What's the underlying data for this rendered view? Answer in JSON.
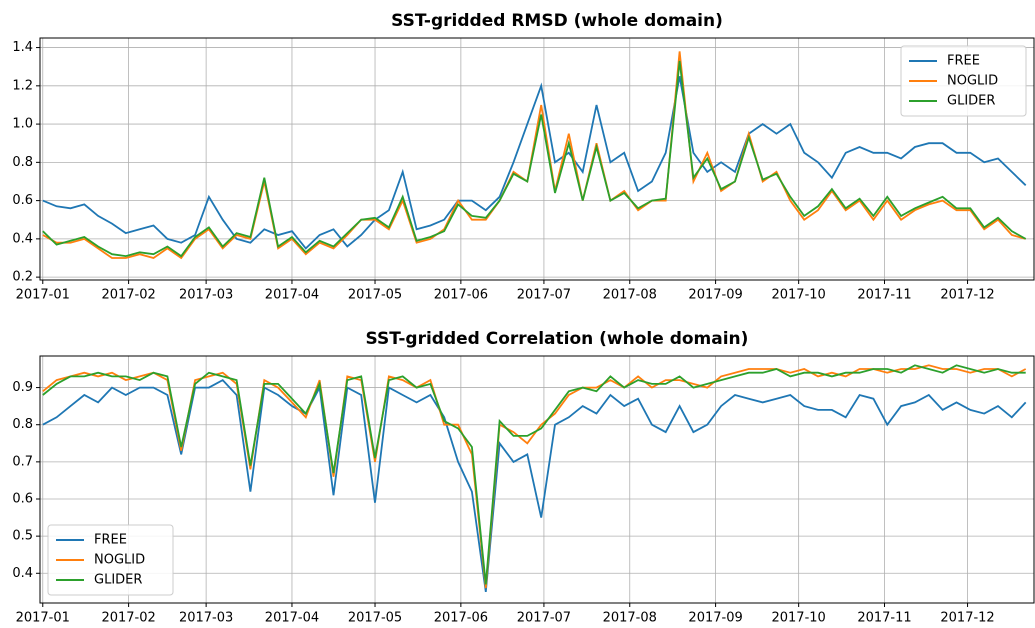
{
  "chart_data": [
    {
      "type": "line",
      "title": "SST-gridded RMSD (whole domain)",
      "grid": true,
      "legend": "upper right",
      "xlim": [
        -1,
        358
      ],
      "ylim": [
        0.185,
        1.45
      ],
      "xticks": [
        {
          "value": 0,
          "label": "2017-01"
        },
        {
          "value": 31,
          "label": "2017-02"
        },
        {
          "value": 59,
          "label": "2017-03"
        },
        {
          "value": 90,
          "label": "2017-04"
        },
        {
          "value": 120,
          "label": "2017-05"
        },
        {
          "value": 151,
          "label": "2017-06"
        },
        {
          "value": 181,
          "label": "2017-07"
        },
        {
          "value": 212,
          "label": "2017-08"
        },
        {
          "value": 243,
          "label": "2017-09"
        },
        {
          "value": 273,
          "label": "2017-10"
        },
        {
          "value": 304,
          "label": "2017-11"
        },
        {
          "value": 334,
          "label": "2017-12"
        }
      ],
      "yticks": [
        0.2,
        0.4,
        0.6,
        0.8,
        {
          "value": 1,
          "label": "1.0"
        },
        1.2,
        1.4
      ],
      "x": [
        0,
        5,
        10,
        15,
        20,
        25,
        30,
        35,
        40,
        45,
        50,
        55,
        60,
        65,
        70,
        75,
        80,
        85,
        90,
        95,
        100,
        105,
        110,
        115,
        120,
        125,
        130,
        135,
        140,
        145,
        150,
        155,
        160,
        165,
        170,
        175,
        180,
        185,
        190,
        195,
        200,
        205,
        210,
        215,
        220,
        225,
        230,
        235,
        240,
        245,
        250,
        255,
        260,
        265,
        270,
        275,
        280,
        285,
        290,
        295,
        300,
        305,
        310,
        315,
        320,
        325,
        330,
        335,
        340,
        345,
        350,
        355
      ],
      "series": [
        {
          "name": "FREE",
          "color": "#1f77b4",
          "values": [
            0.6,
            0.57,
            0.56,
            0.58,
            0.52,
            0.48,
            0.43,
            0.45,
            0.47,
            0.4,
            0.38,
            0.42,
            0.62,
            0.5,
            0.4,
            0.38,
            0.45,
            0.42,
            0.44,
            0.35,
            0.42,
            0.45,
            0.36,
            0.42,
            0.5,
            0.55,
            0.75,
            0.45,
            0.47,
            0.5,
            0.6,
            0.6,
            0.55,
            0.62,
            0.8,
            1.0,
            1.2,
            0.8,
            0.85,
            0.75,
            1.1,
            0.8,
            0.85,
            0.65,
            0.7,
            0.85,
            1.25,
            0.85,
            0.75,
            0.8,
            0.75,
            0.95,
            1.0,
            0.95,
            1.0,
            0.85,
            0.8,
            0.72,
            0.85,
            0.88,
            0.85,
            0.85,
            0.82,
            0.88,
            0.9,
            0.9,
            0.85,
            0.85,
            0.8,
            0.82,
            0.75,
            0.68
          ]
        },
        {
          "name": "NOGLID",
          "color": "#ff7f0e",
          "values": [
            0.42,
            0.38,
            0.38,
            0.4,
            0.35,
            0.3,
            0.3,
            0.32,
            0.3,
            0.35,
            0.3,
            0.4,
            0.45,
            0.35,
            0.42,
            0.4,
            0.7,
            0.35,
            0.4,
            0.32,
            0.38,
            0.35,
            0.42,
            0.5,
            0.5,
            0.45,
            0.6,
            0.38,
            0.4,
            0.45,
            0.6,
            0.5,
            0.5,
            0.6,
            0.75,
            0.7,
            1.1,
            0.65,
            0.95,
            0.6,
            0.9,
            0.6,
            0.65,
            0.55,
            0.6,
            0.6,
            1.38,
            0.7,
            0.85,
            0.65,
            0.7,
            0.95,
            0.7,
            0.75,
            0.6,
            0.5,
            0.55,
            0.65,
            0.55,
            0.6,
            0.5,
            0.6,
            0.5,
            0.55,
            0.58,
            0.6,
            0.55,
            0.55,
            0.45,
            0.5,
            0.42,
            0.4
          ]
        },
        {
          "name": "GLIDER",
          "color": "#2ca02c",
          "values": [
            0.44,
            0.37,
            0.39,
            0.41,
            0.36,
            0.32,
            0.31,
            0.33,
            0.32,
            0.36,
            0.31,
            0.41,
            0.46,
            0.36,
            0.43,
            0.41,
            0.72,
            0.36,
            0.41,
            0.33,
            0.39,
            0.36,
            0.43,
            0.5,
            0.51,
            0.46,
            0.62,
            0.39,
            0.41,
            0.44,
            0.58,
            0.52,
            0.51,
            0.6,
            0.74,
            0.7,
            1.05,
            0.64,
            0.9,
            0.6,
            0.88,
            0.6,
            0.64,
            0.56,
            0.6,
            0.61,
            1.33,
            0.72,
            0.82,
            0.66,
            0.7,
            0.93,
            0.71,
            0.74,
            0.62,
            0.52,
            0.57,
            0.66,
            0.56,
            0.61,
            0.52,
            0.62,
            0.52,
            0.56,
            0.59,
            0.62,
            0.56,
            0.56,
            0.46,
            0.51,
            0.44,
            0.4
          ]
        }
      ]
    },
    {
      "type": "line",
      "title": "SST-gridded Correlation (whole domain)",
      "grid": true,
      "legend": "lower left",
      "xlim": [
        -1,
        358
      ],
      "ylim": [
        0.32,
        0.985
      ],
      "xticks": [
        {
          "value": 0,
          "label": "2017-01"
        },
        {
          "value": 31,
          "label": "2017-02"
        },
        {
          "value": 59,
          "label": "2017-03"
        },
        {
          "value": 90,
          "label": "2017-04"
        },
        {
          "value": 120,
          "label": "2017-05"
        },
        {
          "value": 151,
          "label": "2017-06"
        },
        {
          "value": 181,
          "label": "2017-07"
        },
        {
          "value": 212,
          "label": "2017-08"
        },
        {
          "value": 243,
          "label": "2017-09"
        },
        {
          "value": 273,
          "label": "2017-10"
        },
        {
          "value": 304,
          "label": "2017-11"
        },
        {
          "value": 334,
          "label": "2017-12"
        }
      ],
      "yticks": [
        0.4,
        0.5,
        0.6,
        0.7,
        0.8,
        0.9
      ],
      "x": [
        0,
        5,
        10,
        15,
        20,
        25,
        30,
        35,
        40,
        45,
        50,
        55,
        60,
        65,
        70,
        75,
        80,
        85,
        90,
        95,
        100,
        105,
        110,
        115,
        120,
        125,
        130,
        135,
        140,
        145,
        150,
        155,
        160,
        165,
        170,
        175,
        180,
        185,
        190,
        195,
        200,
        205,
        210,
        215,
        220,
        225,
        230,
        235,
        240,
        245,
        250,
        255,
        260,
        265,
        270,
        275,
        280,
        285,
        290,
        295,
        300,
        305,
        310,
        315,
        320,
        325,
        330,
        335,
        340,
        345,
        350,
        355
      ],
      "series": [
        {
          "name": "FREE",
          "color": "#1f77b4",
          "values": [
            0.8,
            0.82,
            0.85,
            0.88,
            0.86,
            0.9,
            0.88,
            0.9,
            0.9,
            0.88,
            0.72,
            0.9,
            0.9,
            0.92,
            0.88,
            0.62,
            0.9,
            0.88,
            0.85,
            0.83,
            0.9,
            0.61,
            0.9,
            0.88,
            0.59,
            0.9,
            0.88,
            0.86,
            0.88,
            0.82,
            0.7,
            0.62,
            0.35,
            0.75,
            0.7,
            0.72,
            0.55,
            0.8,
            0.82,
            0.85,
            0.83,
            0.88,
            0.85,
            0.87,
            0.8,
            0.78,
            0.85,
            0.78,
            0.8,
            0.85,
            0.88,
            0.87,
            0.86,
            0.87,
            0.88,
            0.85,
            0.84,
            0.84,
            0.82,
            0.88,
            0.87,
            0.8,
            0.85,
            0.86,
            0.88,
            0.84,
            0.86,
            0.84,
            0.83,
            0.85,
            0.82,
            0.86
          ]
        },
        {
          "name": "NOGLID",
          "color": "#ff7f0e",
          "values": [
            0.89,
            0.92,
            0.93,
            0.94,
            0.93,
            0.94,
            0.92,
            0.93,
            0.94,
            0.92,
            0.73,
            0.92,
            0.93,
            0.94,
            0.91,
            0.68,
            0.92,
            0.9,
            0.86,
            0.82,
            0.92,
            0.66,
            0.93,
            0.92,
            0.7,
            0.93,
            0.92,
            0.9,
            0.92,
            0.8,
            0.8,
            0.72,
            0.36,
            0.8,
            0.78,
            0.75,
            0.8,
            0.83,
            0.88,
            0.9,
            0.9,
            0.92,
            0.9,
            0.93,
            0.9,
            0.92,
            0.92,
            0.91,
            0.9,
            0.93,
            0.94,
            0.95,
            0.95,
            0.95,
            0.94,
            0.95,
            0.93,
            0.94,
            0.93,
            0.95,
            0.95,
            0.94,
            0.95,
            0.95,
            0.96,
            0.95,
            0.95,
            0.94,
            0.95,
            0.95,
            0.93,
            0.95
          ]
        },
        {
          "name": "GLIDER",
          "color": "#2ca02c",
          "values": [
            0.88,
            0.91,
            0.93,
            0.93,
            0.94,
            0.93,
            0.93,
            0.92,
            0.94,
            0.93,
            0.74,
            0.91,
            0.94,
            0.93,
            0.92,
            0.69,
            0.91,
            0.91,
            0.87,
            0.83,
            0.91,
            0.67,
            0.92,
            0.93,
            0.71,
            0.92,
            0.93,
            0.9,
            0.91,
            0.81,
            0.79,
            0.74,
            0.37,
            0.81,
            0.77,
            0.77,
            0.79,
            0.84,
            0.89,
            0.9,
            0.89,
            0.93,
            0.9,
            0.92,
            0.91,
            0.91,
            0.93,
            0.9,
            0.91,
            0.92,
            0.93,
            0.94,
            0.94,
            0.95,
            0.93,
            0.94,
            0.94,
            0.93,
            0.94,
            0.94,
            0.95,
            0.95,
            0.94,
            0.96,
            0.95,
            0.94,
            0.96,
            0.95,
            0.94,
            0.95,
            0.94,
            0.94
          ]
        }
      ]
    }
  ]
}
